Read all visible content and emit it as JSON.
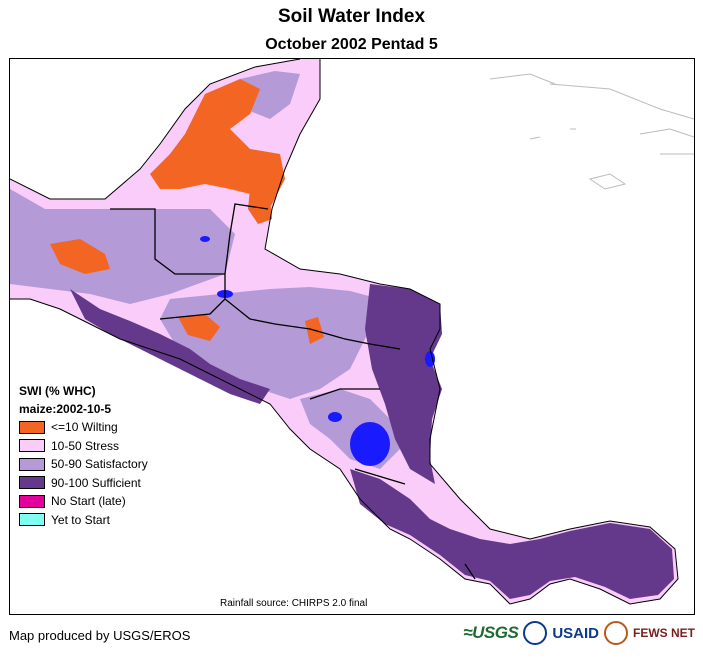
{
  "title": "Soil Water Index",
  "subtitle": "October 2002 Pentad 5",
  "legend": {
    "title": "SWI (% WHC)",
    "subtitle": "maize:2002-10-5",
    "items": [
      {
        "label": "<=10 Wilting",
        "color": "#f26522"
      },
      {
        "label": "10-50 Stress",
        "color": "#f9ccf9"
      },
      {
        "label": "50-90 Satisfactory",
        "color": "#b49ad6"
      },
      {
        "label": "90-100 Sufficient",
        "color": "#64398c"
      },
      {
        "label": "No Start (late)",
        "color": "#e4009c"
      },
      {
        "label": "Yet to Start",
        "color": "#7ffff0"
      }
    ]
  },
  "water_color": "#1a1aff",
  "rainfall_source": "Rainfall source: CHIRPS 2.0 final",
  "credit": "Map produced by USGS/EROS",
  "logos": {
    "usgs": "≈USGS",
    "usaid": "USAID",
    "fews": "FEWS NET"
  }
}
